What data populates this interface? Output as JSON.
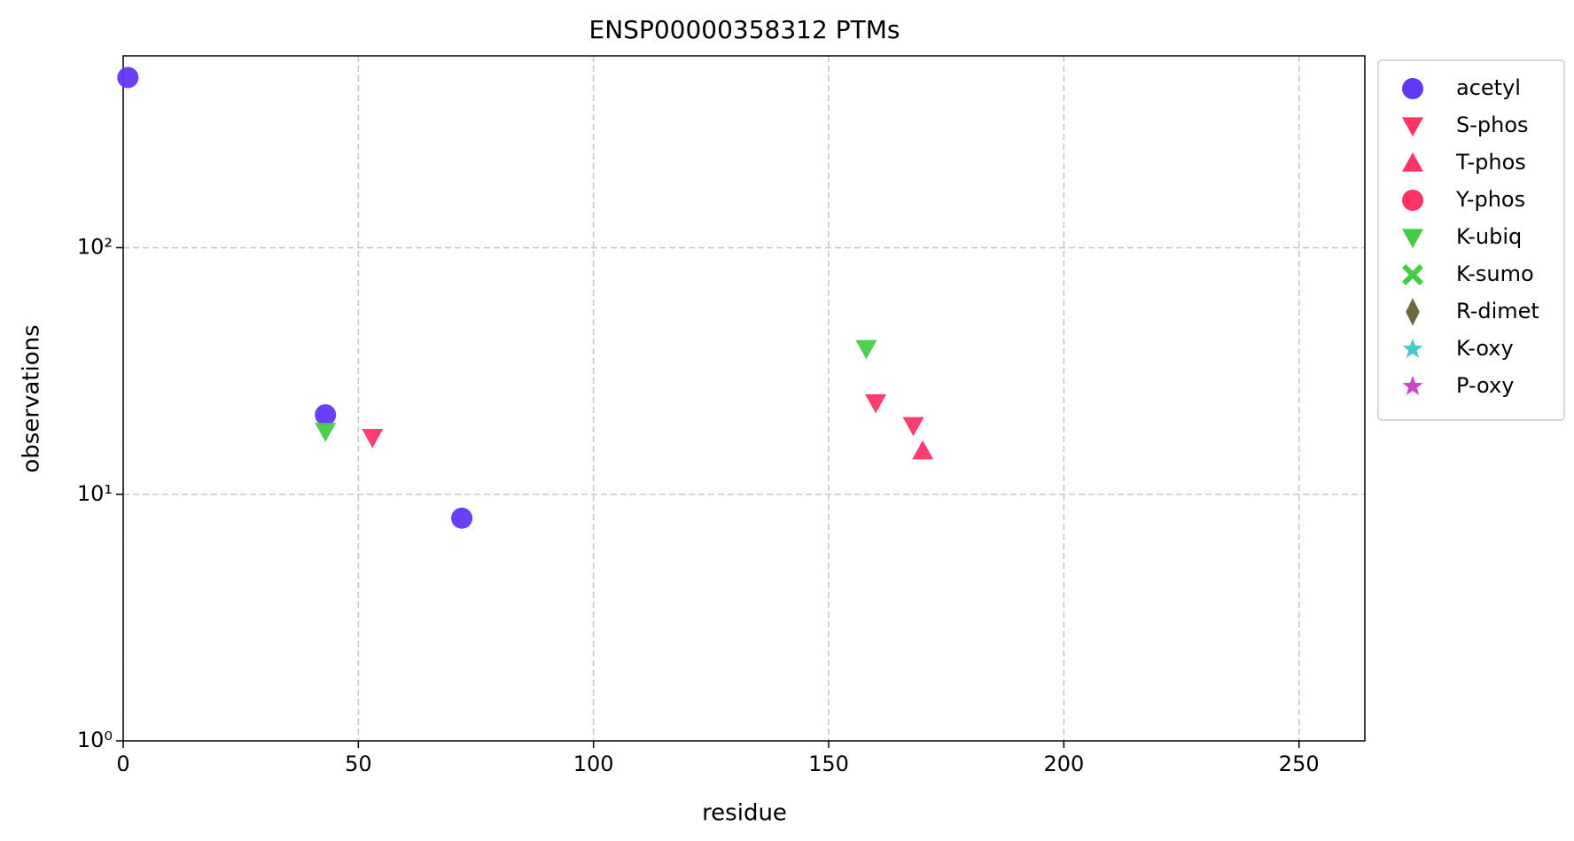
{
  "chart_data": {
    "type": "scatter",
    "title": "ENSP00000358312 PTMs",
    "x_label": "residue",
    "y_label": "observations",
    "xlim": [
      0,
      264
    ],
    "xticks": [
      0,
      50,
      100,
      150,
      200,
      250
    ],
    "ylim": [
      1,
      600
    ],
    "yticks": [
      {
        "value": 1,
        "label": "10⁰"
      },
      {
        "value": 10,
        "label": "10¹"
      },
      {
        "value": 100,
        "label": "10²"
      }
    ],
    "y_scale": "log",
    "grid": true,
    "legend": "outside upper right",
    "series": [
      {
        "name": "acetyl",
        "color": "#6236f5",
        "marker": "circle",
        "x": [
          1,
          43,
          72
        ],
        "values": [
          490,
          21,
          8
        ]
      },
      {
        "name": "S-phos",
        "color": "#ff3366",
        "marker": "triangle-down",
        "x": [
          53,
          160,
          168
        ],
        "values": [
          17,
          23.5,
          19
        ]
      },
      {
        "name": "T-phos",
        "color": "#ff3366",
        "marker": "triangle-up",
        "x": [
          170
        ],
        "values": [
          15
        ]
      },
      {
        "name": "Y-phos",
        "color": "#ff3366",
        "marker": "circle",
        "x": [],
        "values": []
      },
      {
        "name": "K-ubiq",
        "color": "#44cc44",
        "marker": "triangle-down",
        "x": [
          43,
          158
        ],
        "values": [
          18,
          39
        ]
      },
      {
        "name": "K-sumo",
        "color": "#44cc44",
        "marker": "x",
        "x": [],
        "values": []
      },
      {
        "name": "R-dimet",
        "color": "#6b6b3f",
        "marker": "diamond",
        "x": [],
        "values": []
      },
      {
        "name": "K-oxy",
        "color": "#44cccc",
        "marker": "star",
        "x": [],
        "values": []
      },
      {
        "name": "P-oxy",
        "color": "#cc44cc",
        "marker": "star",
        "x": [],
        "values": []
      }
    ]
  }
}
